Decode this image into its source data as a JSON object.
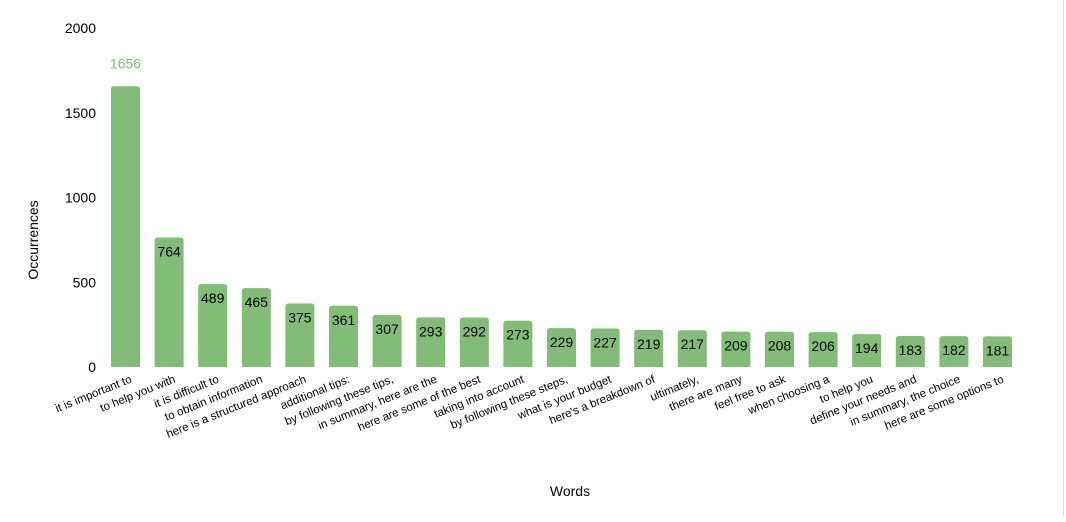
{
  "chart_data": {
    "type": "bar",
    "title": "",
    "xlabel": "Words",
    "ylabel": "Occurrences",
    "ylim": [
      0,
      2000
    ],
    "yticks": [
      0,
      500,
      1000,
      1500,
      2000
    ],
    "grid": false,
    "legend": "none",
    "bar_color": "#81bd77",
    "highlight_label_color": "#81bd77",
    "categories": [
      "it is important to",
      "to help you with",
      "it is difficult to",
      "to obtain information",
      "here is a structured approach",
      "additional tips:",
      "by following these tips,",
      "in summary, here are the",
      "here are some of the best",
      "taking into account",
      "by following these steps,",
      "what is your budget",
      "here's a breakdown of",
      "ultimately,",
      "there are many",
      "feel free to ask",
      "when choosing a",
      "to help you",
      "define your needs and",
      "in summary, the choice",
      "here are some options to"
    ],
    "values": [
      1656,
      764,
      489,
      465,
      375,
      361,
      307,
      293,
      292,
      273,
      229,
      227,
      219,
      217,
      209,
      208,
      206,
      194,
      183,
      182,
      181
    ]
  }
}
